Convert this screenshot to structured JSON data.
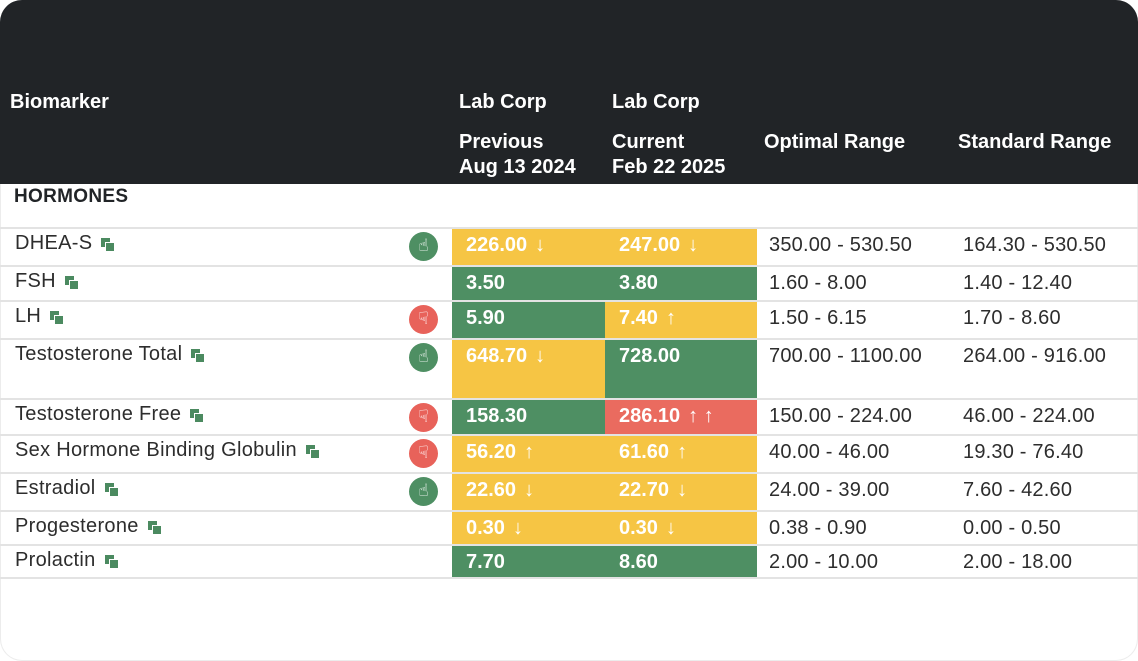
{
  "header": {
    "biomarker": "Biomarker",
    "prev_lab": "Lab Corp",
    "prev_label": "Previous",
    "prev_date": "Aug 13 2024",
    "curr_lab": "Lab Corp",
    "curr_label": "Current",
    "curr_date": "Feb 22 2025",
    "optimal": "Optimal Range",
    "standard": "Standard Range"
  },
  "section_title": "HORMONES",
  "colors": {
    "green": "#4e8f63",
    "yellow": "#f6c544",
    "red": "#ea6b5f",
    "header_bg": "#212427"
  },
  "rows": [
    {
      "name": "DHEA-S",
      "status": "up",
      "prev": "226.00",
      "prev_color": "yellow",
      "prev_arrow": "↓",
      "curr": "247.00",
      "curr_color": "yellow",
      "curr_arrow": "↓",
      "optimal": "350.00 - 530.50",
      "standard": "164.30 - 530.50"
    },
    {
      "name": "FSH",
      "status": "",
      "prev": "3.50",
      "prev_color": "green",
      "prev_arrow": "",
      "curr": "3.80",
      "curr_color": "green",
      "curr_arrow": "",
      "optimal": "1.60 - 8.00",
      "standard": "1.40 - 12.40"
    },
    {
      "name": "LH",
      "status": "down",
      "prev": "5.90",
      "prev_color": "green",
      "prev_arrow": "",
      "curr": "7.40",
      "curr_color": "yellow",
      "curr_arrow": "↑",
      "optimal": "1.50 - 6.15",
      "standard": "1.70 - 8.60"
    },
    {
      "name": "Testosterone Total",
      "status": "up",
      "prev": "648.70",
      "prev_color": "yellow",
      "prev_arrow": "↓",
      "curr": "728.00",
      "curr_color": "green",
      "curr_arrow": "",
      "optimal": "700.00 - 1100.00",
      "standard": "264.00 - 916.00"
    },
    {
      "name": "Testosterone Free",
      "status": "down",
      "prev": "158.30",
      "prev_color": "green",
      "prev_arrow": "",
      "curr": "286.10",
      "curr_color": "red",
      "curr_arrow": "↑ ↑",
      "optimal": "150.00 - 224.00",
      "standard": "46.00 - 224.00"
    },
    {
      "name": "Sex Hormone Binding Globulin",
      "status": "down",
      "prev": "56.20",
      "prev_color": "yellow",
      "prev_arrow": "↑",
      "curr": "61.60",
      "curr_color": "yellow",
      "curr_arrow": "↑",
      "optimal": "40.00 - 46.00",
      "standard": "19.30 - 76.40"
    },
    {
      "name": "Estradiol",
      "status": "up",
      "prev": "22.60",
      "prev_color": "yellow",
      "prev_arrow": "↓",
      "curr": "22.70",
      "curr_color": "yellow",
      "curr_arrow": "↓",
      "optimal": "24.00 - 39.00",
      "standard": "7.60 - 42.60"
    },
    {
      "name": "Progesterone",
      "status": "",
      "prev": "0.30",
      "prev_color": "yellow",
      "prev_arrow": "↓",
      "curr": "0.30",
      "curr_color": "yellow",
      "curr_arrow": "↓",
      "optimal": "0.38 - 0.90",
      "standard": "0.00 - 0.50"
    },
    {
      "name": "Prolactin",
      "status": "",
      "prev": "7.70",
      "prev_color": "green",
      "prev_arrow": "",
      "curr": "8.60",
      "curr_color": "green",
      "curr_arrow": "",
      "optimal": "2.00 - 10.00",
      "standard": "2.00 - 18.00"
    }
  ]
}
